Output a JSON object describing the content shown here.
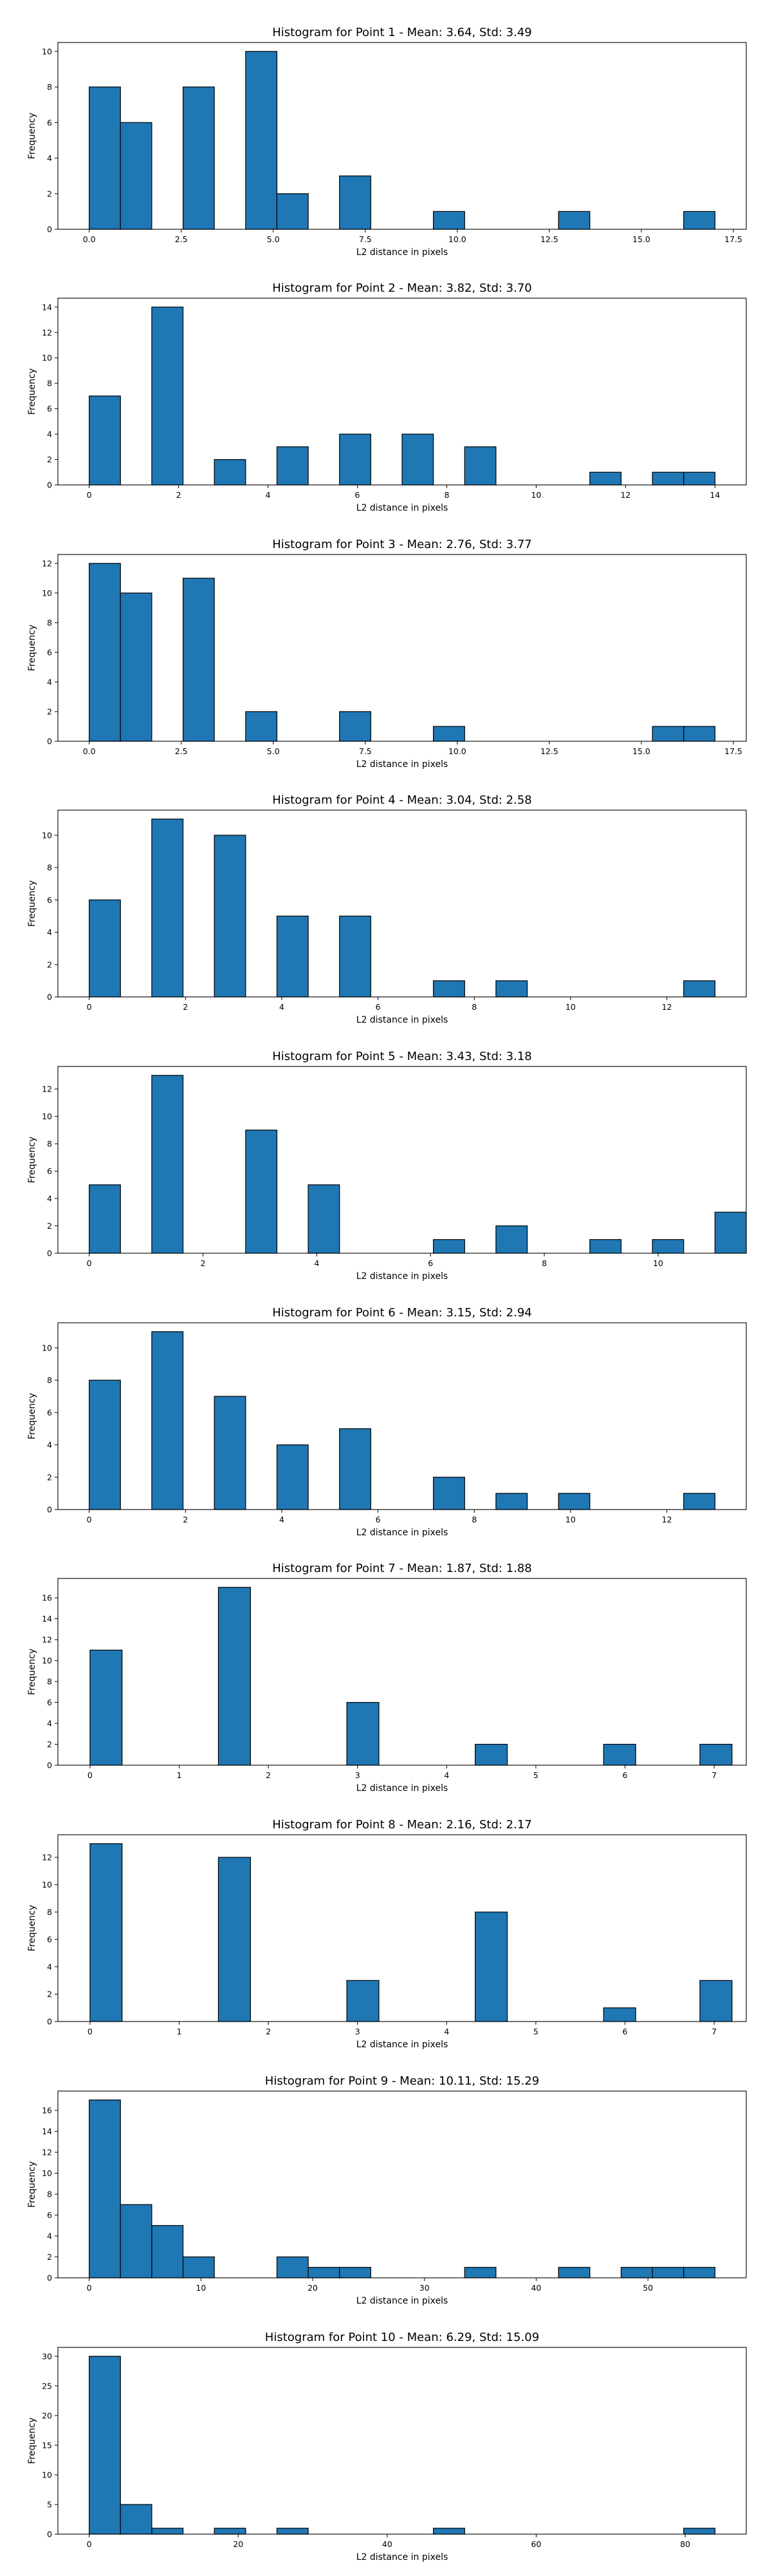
{
  "figure": {
    "bar_color": "#1f77b4",
    "edge_color": "#000000",
    "background": "#ffffff"
  },
  "chart_data": [
    {
      "type": "bar",
      "title": "Histogram for Point 1 - Mean: 3.64, Std: 3.49",
      "xlabel": "L2 distance in pixels",
      "ylabel": "Frequency",
      "xlim": [
        -0.85,
        17.85
      ],
      "ylim": [
        0,
        10.5
      ],
      "xticks": [
        0.0,
        2.5,
        5.0,
        7.5,
        10.0,
        12.5,
        15.0,
        17.5
      ],
      "xtick_labels": [
        "0.0",
        "2.5",
        "5.0",
        "7.5",
        "10.0",
        "12.5",
        "15.0",
        "17.5"
      ],
      "yticks": [
        0,
        2,
        4,
        6,
        8,
        10
      ],
      "bins": [
        {
          "x0": 0.0,
          "x1": 0.85,
          "count": 8
        },
        {
          "x0": 0.85,
          "x1": 1.7,
          "count": 6
        },
        {
          "x0": 2.55,
          "x1": 3.4,
          "count": 8
        },
        {
          "x0": 4.25,
          "x1": 5.1,
          "count": 10
        },
        {
          "x0": 5.1,
          "x1": 5.95,
          "count": 2
        },
        {
          "x0": 6.8,
          "x1": 7.65,
          "count": 3
        },
        {
          "x0": 9.35,
          "x1": 10.2,
          "count": 1
        },
        {
          "x0": 12.75,
          "x1": 13.6,
          "count": 1
        },
        {
          "x0": 16.15,
          "x1": 17.0,
          "count": 1
        }
      ]
    },
    {
      "type": "bar",
      "title": "Histogram for Point 2 - Mean: 3.82, Std: 3.70",
      "xlabel": "L2 distance in pixels",
      "ylabel": "Frequency",
      "xlim": [
        -0.7,
        14.7
      ],
      "ylim": [
        0,
        14.7
      ],
      "xticks": [
        0,
        2,
        4,
        6,
        8,
        10,
        12,
        14
      ],
      "xtick_labels": [
        "0",
        "2",
        "4",
        "6",
        "8",
        "10",
        "12",
        "14"
      ],
      "yticks": [
        0,
        2,
        4,
        6,
        8,
        10,
        12,
        14
      ],
      "bins": [
        {
          "x0": 0.0,
          "x1": 0.7,
          "count": 7
        },
        {
          "x0": 1.4,
          "x1": 2.1,
          "count": 14
        },
        {
          "x0": 2.8,
          "x1": 3.5,
          "count": 2
        },
        {
          "x0": 4.2,
          "x1": 4.9,
          "count": 3
        },
        {
          "x0": 5.6,
          "x1": 6.3,
          "count": 4
        },
        {
          "x0": 7.0,
          "x1": 7.7,
          "count": 4
        },
        {
          "x0": 8.4,
          "x1": 9.1,
          "count": 3
        },
        {
          "x0": 11.2,
          "x1": 11.9,
          "count": 1
        },
        {
          "x0": 12.6,
          "x1": 13.3,
          "count": 1
        },
        {
          "x0": 13.3,
          "x1": 14.0,
          "count": 1
        }
      ]
    },
    {
      "type": "bar",
      "title": "Histogram for Point 3 - Mean: 2.76, Std: 3.77",
      "xlabel": "L2 distance in pixels",
      "ylabel": "Frequency",
      "xlim": [
        -0.85,
        17.85
      ],
      "ylim": [
        0,
        12.6
      ],
      "xticks": [
        0.0,
        2.5,
        5.0,
        7.5,
        10.0,
        12.5,
        15.0,
        17.5
      ],
      "xtick_labels": [
        "0.0",
        "2.5",
        "5.0",
        "7.5",
        "10.0",
        "12.5",
        "15.0",
        "17.5"
      ],
      "yticks": [
        0,
        2,
        4,
        6,
        8,
        10,
        12
      ],
      "bins": [
        {
          "x0": 0.0,
          "x1": 0.85,
          "count": 12
        },
        {
          "x0": 0.85,
          "x1": 1.7,
          "count": 10
        },
        {
          "x0": 2.55,
          "x1": 3.4,
          "count": 11
        },
        {
          "x0": 4.25,
          "x1": 5.1,
          "count": 2
        },
        {
          "x0": 6.8,
          "x1": 7.65,
          "count": 2
        },
        {
          "x0": 9.35,
          "x1": 10.2,
          "count": 1
        },
        {
          "x0": 15.3,
          "x1": 16.15,
          "count": 1
        },
        {
          "x0": 16.15,
          "x1": 17.0,
          "count": 1
        }
      ]
    },
    {
      "type": "bar",
      "title": "Histogram for Point 4 - Mean: 3.04, Std: 2.58",
      "xlabel": "L2 distance in pixels",
      "ylabel": "Frequency",
      "xlim": [
        -0.65,
        13.65
      ],
      "ylim": [
        0,
        11.55
      ],
      "xticks": [
        0,
        2,
        4,
        6,
        8,
        10,
        12
      ],
      "xtick_labels": [
        "0",
        "2",
        "4",
        "6",
        "8",
        "10",
        "12"
      ],
      "yticks": [
        0,
        2,
        4,
        6,
        8,
        10
      ],
      "bins": [
        {
          "x0": 0.0,
          "x1": 0.65,
          "count": 6
        },
        {
          "x0": 1.3,
          "x1": 1.95,
          "count": 11
        },
        {
          "x0": 2.6,
          "x1": 3.25,
          "count": 10
        },
        {
          "x0": 3.9,
          "x1": 4.55,
          "count": 5
        },
        {
          "x0": 5.2,
          "x1": 5.85,
          "count": 5
        },
        {
          "x0": 7.15,
          "x1": 7.8,
          "count": 1
        },
        {
          "x0": 8.45,
          "x1": 9.1,
          "count": 1
        },
        {
          "x0": 12.35,
          "x1": 13.0,
          "count": 1
        }
      ]
    },
    {
      "type": "bar",
      "title": "Histogram for Point 5 - Mean: 3.43, Std: 3.18",
      "xlabel": "L2 distance in pixels",
      "ylabel": "Frequency",
      "xlim": [
        -0.55,
        11.55
      ],
      "ylim": [
        0,
        13.65
      ],
      "xticks": [
        0,
        2,
        4,
        6,
        8,
        10
      ],
      "xtick_labels": [
        "0",
        "2",
        "4",
        "6",
        "8",
        "10"
      ],
      "yticks": [
        0,
        2,
        4,
        6,
        8,
        10,
        12
      ],
      "bins": [
        {
          "x0": 0.0,
          "x1": 0.55,
          "count": 5
        },
        {
          "x0": 1.1,
          "x1": 1.65,
          "count": 13
        },
        {
          "x0": 2.75,
          "x1": 3.3,
          "count": 9
        },
        {
          "x0": 3.85,
          "x1": 4.4,
          "count": 5
        },
        {
          "x0": 6.05,
          "x1": 6.6,
          "count": 1
        },
        {
          "x0": 7.15,
          "x1": 7.7,
          "count": 2
        },
        {
          "x0": 8.8,
          "x1": 9.35,
          "count": 1
        },
        {
          "x0": 9.9,
          "x1": 10.45,
          "count": 1
        },
        {
          "x0": 11.0,
          "x1": 11.55,
          "count": 3
        }
      ]
    },
    {
      "type": "bar",
      "title": "Histogram for Point 6 - Mean: 3.15, Std: 2.94",
      "xlabel": "L2 distance in pixels",
      "ylabel": "Frequency",
      "xlim": [
        -0.65,
        13.65
      ],
      "ylim": [
        0,
        11.55
      ],
      "xticks": [
        0,
        2,
        4,
        6,
        8,
        10,
        12
      ],
      "xtick_labels": [
        "0",
        "2",
        "4",
        "6",
        "8",
        "10",
        "12"
      ],
      "yticks": [
        0,
        2,
        4,
        6,
        8,
        10
      ],
      "bins": [
        {
          "x0": 0.0,
          "x1": 0.65,
          "count": 8
        },
        {
          "x0": 1.3,
          "x1": 1.95,
          "count": 11
        },
        {
          "x0": 2.6,
          "x1": 3.25,
          "count": 7
        },
        {
          "x0": 3.9,
          "x1": 4.55,
          "count": 4
        },
        {
          "x0": 5.2,
          "x1": 5.85,
          "count": 5
        },
        {
          "x0": 7.15,
          "x1": 7.8,
          "count": 2
        },
        {
          "x0": 8.45,
          "x1": 9.1,
          "count": 1
        },
        {
          "x0": 9.75,
          "x1": 10.4,
          "count": 1
        },
        {
          "x0": 12.35,
          "x1": 13.0,
          "count": 1
        }
      ]
    },
    {
      "type": "bar",
      "title": "Histogram for Point 7 - Mean: 1.87, Std: 1.88",
      "xlabel": "L2 distance in pixels",
      "ylabel": "Frequency",
      "xlim": [
        -0.36,
        7.36
      ],
      "ylim": [
        0,
        17.85
      ],
      "xticks": [
        0,
        1,
        2,
        3,
        4,
        5,
        6,
        7
      ],
      "xtick_labels": [
        "0",
        "1",
        "2",
        "3",
        "4",
        "5",
        "6",
        "7"
      ],
      "yticks": [
        0,
        2,
        4,
        6,
        8,
        10,
        12,
        14,
        16
      ],
      "bins": [
        {
          "x0": 0.0,
          "x1": 0.36,
          "count": 11
        },
        {
          "x0": 1.44,
          "x1": 1.8,
          "count": 17
        },
        {
          "x0": 2.88,
          "x1": 3.24,
          "count": 6
        },
        {
          "x0": 4.32,
          "x1": 4.68,
          "count": 2
        },
        {
          "x0": 5.76,
          "x1": 6.12,
          "count": 2
        },
        {
          "x0": 6.84,
          "x1": 7.2,
          "count": 2
        }
      ]
    },
    {
      "type": "bar",
      "title": "Histogram for Point 8 - Mean: 2.16, Std: 2.17",
      "xlabel": "L2 distance in pixels",
      "ylabel": "Frequency",
      "xlim": [
        -0.36,
        7.36
      ],
      "ylim": [
        0,
        13.65
      ],
      "xticks": [
        0,
        1,
        2,
        3,
        4,
        5,
        6,
        7
      ],
      "xtick_labels": [
        "0",
        "1",
        "2",
        "3",
        "4",
        "5",
        "6",
        "7"
      ],
      "yticks": [
        0,
        2,
        4,
        6,
        8,
        10,
        12
      ],
      "bins": [
        {
          "x0": 0.0,
          "x1": 0.36,
          "count": 13
        },
        {
          "x0": 1.44,
          "x1": 1.8,
          "count": 12
        },
        {
          "x0": 2.88,
          "x1": 3.24,
          "count": 3
        },
        {
          "x0": 4.32,
          "x1": 4.68,
          "count": 8
        },
        {
          "x0": 5.76,
          "x1": 6.12,
          "count": 1
        },
        {
          "x0": 6.84,
          "x1": 7.2,
          "count": 3
        }
      ]
    },
    {
      "type": "bar",
      "title": "Histogram for Point 9 - Mean: 10.11, Std: 15.29",
      "xlabel": "L2 distance in pixels",
      "ylabel": "Frequency",
      "xlim": [
        -2.8,
        58.8
      ],
      "ylim": [
        0,
        17.85
      ],
      "xticks": [
        0,
        10,
        20,
        30,
        40,
        50
      ],
      "xtick_labels": [
        "0",
        "10",
        "20",
        "30",
        "40",
        "50"
      ],
      "yticks": [
        0,
        2,
        4,
        6,
        8,
        10,
        12,
        14,
        16
      ],
      "bins": [
        {
          "x0": 0.0,
          "x1": 2.8,
          "count": 17
        },
        {
          "x0": 2.8,
          "x1": 5.6,
          "count": 7
        },
        {
          "x0": 5.6,
          "x1": 8.4,
          "count": 5
        },
        {
          "x0": 8.4,
          "x1": 11.2,
          "count": 2
        },
        {
          "x0": 16.8,
          "x1": 19.6,
          "count": 2
        },
        {
          "x0": 19.6,
          "x1": 22.4,
          "count": 1
        },
        {
          "x0": 22.4,
          "x1": 25.2,
          "count": 1
        },
        {
          "x0": 33.6,
          "x1": 36.4,
          "count": 1
        },
        {
          "x0": 42.0,
          "x1": 44.8,
          "count": 1
        },
        {
          "x0": 47.6,
          "x1": 50.4,
          "count": 1
        },
        {
          "x0": 50.4,
          "x1": 53.2,
          "count": 1
        },
        {
          "x0": 53.2,
          "x1": 56.0,
          "count": 1
        }
      ]
    },
    {
      "type": "bar",
      "title": "Histogram for Point 10 - Mean: 6.29, Std: 15.09",
      "xlabel": "L2 distance in pixels",
      "ylabel": "Frequency",
      "xlim": [
        -4.2,
        88.2
      ],
      "ylim": [
        0,
        31.5
      ],
      "xticks": [
        0,
        20,
        40,
        60,
        80
      ],
      "xtick_labels": [
        "0",
        "20",
        "40",
        "60",
        "80"
      ],
      "yticks": [
        0,
        5,
        10,
        15,
        20,
        25,
        30
      ],
      "bins": [
        {
          "x0": 0.0,
          "x1": 4.2,
          "count": 30
        },
        {
          "x0": 4.2,
          "x1": 8.4,
          "count": 5
        },
        {
          "x0": 8.4,
          "x1": 12.6,
          "count": 1
        },
        {
          "x0": 16.8,
          "x1": 21.0,
          "count": 1
        },
        {
          "x0": 25.2,
          "x1": 29.4,
          "count": 1
        },
        {
          "x0": 46.2,
          "x1": 50.4,
          "count": 1
        },
        {
          "x0": 79.8,
          "x1": 84.0,
          "count": 1
        }
      ]
    }
  ]
}
